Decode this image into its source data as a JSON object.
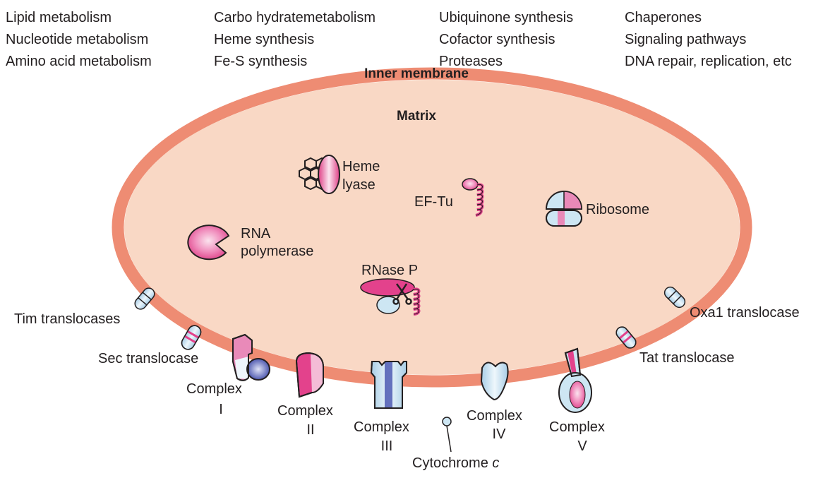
{
  "functions": [
    [
      "Lipid metabolism",
      "Nucleotide metabolism",
      "Amino acid metabolism"
    ],
    [
      "Carbo hydratemetabolism",
      "Heme synthesis",
      "Fe-S synthesis"
    ],
    [
      "Ubiquinone synthesis",
      "Cofactor synthesis",
      "Proteases"
    ],
    [
      "Chaperones",
      "Signaling pathways",
      "DNA repair, replication, etc"
    ]
  ],
  "labels": {
    "inner_membrane": "Inner membrane",
    "matrix": "Matrix",
    "heme_lyase_1": "Heme",
    "heme_lyase_2": "lyase",
    "ef_tu": "EF-Tu",
    "ribosome": "Ribosome",
    "rna_pol_1": "RNA",
    "rna_pol_2": "polymerase",
    "rnase_p": "RNase P",
    "tim": "Tim translocases",
    "sec": "Sec translocase",
    "oxa1": "Oxa1 translocase",
    "tat": "Tat translocase",
    "complex_word": "Complex",
    "complex_i": "I",
    "complex_ii": "II",
    "complex_iii": "III",
    "complex_iv": "IV",
    "complex_v": "V",
    "cytochrome": "Cytochrome",
    "cytochrome_c": "c"
  },
  "colors": {
    "membrane": "#ee8c73",
    "matrix": "#f9d8c5",
    "pink": "#e3428c",
    "light_blue": "#cde6f3",
    "dark_blue": "#4c59b3",
    "outline": "#231f20"
  }
}
